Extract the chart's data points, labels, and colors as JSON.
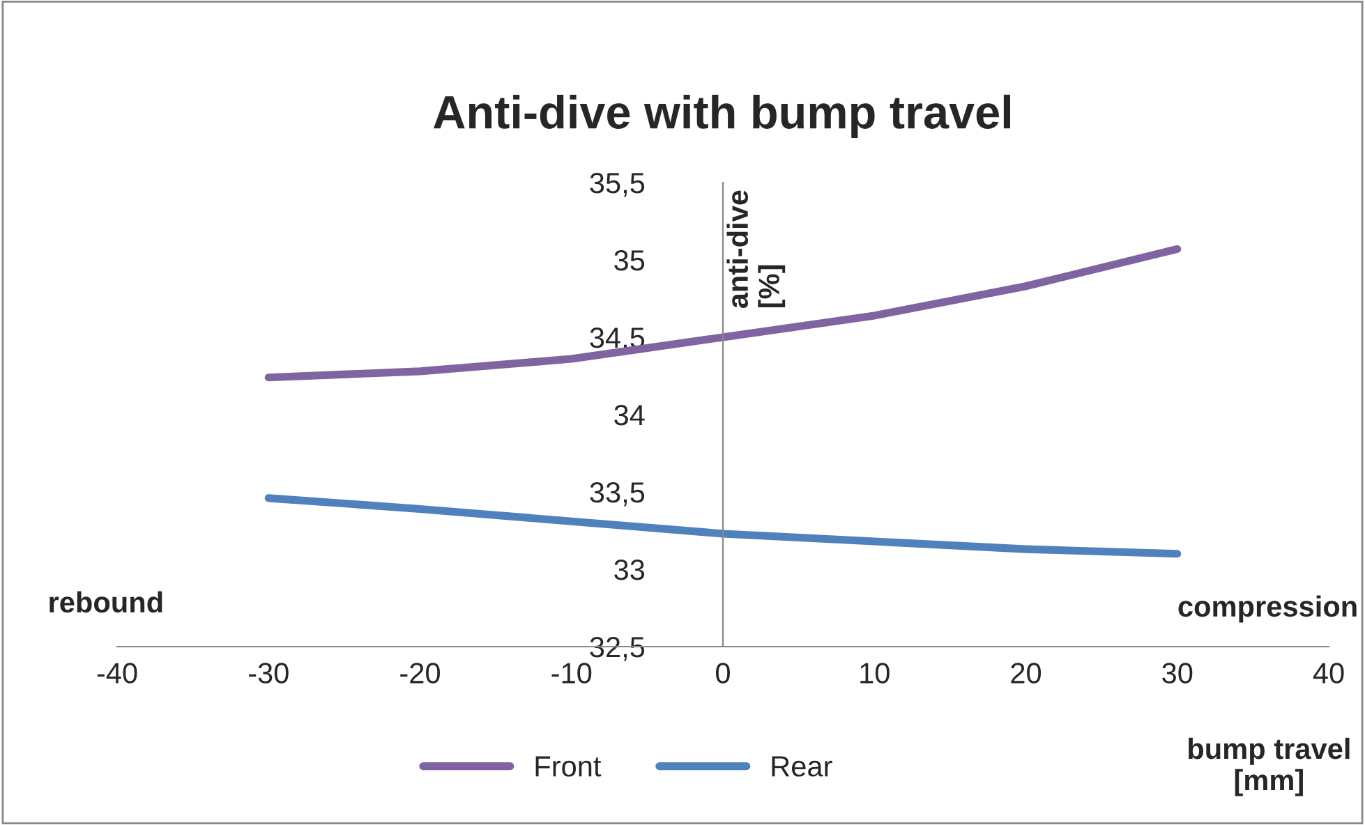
{
  "chart_data": {
    "type": "line",
    "title": "Anti-dive with bump travel",
    "xlabel": "bump travel\n[mm]",
    "ylabel": "anti-dive\n[%]",
    "annotations": [
      "rebound",
      "compression"
    ],
    "x": [
      -30,
      -20,
      -10,
      0,
      10,
      20,
      30
    ],
    "series": [
      {
        "name": "Front",
        "color": "#8064a2",
        "values": [
          34.24,
          34.28,
          34.36,
          34.5,
          34.64,
          34.83,
          35.07
        ]
      },
      {
        "name": "Rear",
        "color": "#4f81bd",
        "values": [
          33.46,
          33.39,
          33.31,
          33.23,
          33.18,
          33.13,
          33.1
        ]
      }
    ],
    "xlim": [
      -40,
      40
    ],
    "xticks": [
      -40,
      -30,
      -20,
      -10,
      0,
      10,
      20,
      30,
      40
    ],
    "ylim": [
      32.5,
      35.5
    ],
    "yticks": [
      {
        "value": 32.5,
        "label": "32,5"
      },
      33,
      {
        "value": 33.5,
        "label": "33,5"
      },
      34,
      {
        "value": 34.5,
        "label": "34,5"
      },
      35,
      {
        "value": 35.5,
        "label": "35,5"
      }
    ],
    "legend": "bottom",
    "marker": "none",
    "line_style": "solid"
  }
}
